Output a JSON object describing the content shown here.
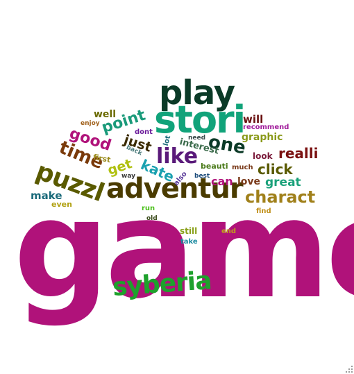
{
  "words": [
    {
      "text": "game",
      "color": "#b0127a"
    },
    {
      "text": "adventur",
      "color": "#4a3b00"
    },
    {
      "text": "stori",
      "color": "#11a37a"
    },
    {
      "text": "play",
      "color": "#0b3a27"
    },
    {
      "text": "syberia",
      "color": "#1ea12c"
    },
    {
      "text": "puzzl",
      "color": "#5a5a00"
    },
    {
      "text": "time",
      "color": "#7a3a0a"
    },
    {
      "text": "like",
      "color": "#5a1a7a"
    },
    {
      "text": "charact",
      "color": "#a0801a"
    },
    {
      "text": "one",
      "color": "#0b3a27"
    },
    {
      "text": "point",
      "color": "#1a9a7a"
    },
    {
      "text": "good",
      "color": "#b0127a"
    },
    {
      "text": "kate",
      "color": "#1aa1b0"
    },
    {
      "text": "get",
      "color": "#b0c010"
    },
    {
      "text": "just",
      "color": "#3a2a00"
    },
    {
      "text": "realli",
      "color": "#7a1010"
    },
    {
      "text": "click",
      "color": "#5a5a00"
    },
    {
      "text": "great",
      "color": "#1aa17a"
    },
    {
      "text": "love",
      "color": "#7a3a1a"
    },
    {
      "text": "can",
      "color": "#b0127a"
    },
    {
      "text": "make",
      "color": "#1a6a7a"
    },
    {
      "text": "will",
      "color": "#6a1010"
    },
    {
      "text": "graphic",
      "color": "#8a9a1a"
    },
    {
      "text": "well",
      "color": "#6a6a00"
    },
    {
      "text": "interest",
      "color": "#3a6a4a"
    },
    {
      "text": "beauti",
      "color": "#4a7a1a"
    },
    {
      "text": "look",
      "color": "#7a1a3a"
    },
    {
      "text": "even",
      "color": "#b0a010"
    },
    {
      "text": "first",
      "color": "#9a8a1a"
    },
    {
      "text": "much",
      "color": "#7a3a1a"
    },
    {
      "text": "recommend",
      "color": "#a01a9a"
    },
    {
      "text": "enjoy",
      "color": "#a0601a"
    },
    {
      "text": "dont",
      "color": "#6a1a9a"
    },
    {
      "text": "lot",
      "color": "#1a6a7a"
    },
    {
      "text": "need",
      "color": "#3a4a4a"
    },
    {
      "text": "back",
      "color": "#4a7a7a"
    },
    {
      "text": "also",
      "color": "#5a3a9a"
    },
    {
      "text": "way",
      "color": "#3a3a3a"
    },
    {
      "text": "best",
      "color": "#1a4a7a"
    },
    {
      "text": "run",
      "color": "#4ac01a"
    },
    {
      "text": "old",
      "color": "#3a4a1a"
    },
    {
      "text": "find",
      "color": "#c0901a"
    },
    {
      "text": "still",
      "color": "#8aa01a"
    },
    {
      "text": "end",
      "color": "#c0a01a"
    },
    {
      "text": "take",
      "color": "#1a8aa0"
    }
  ]
}
